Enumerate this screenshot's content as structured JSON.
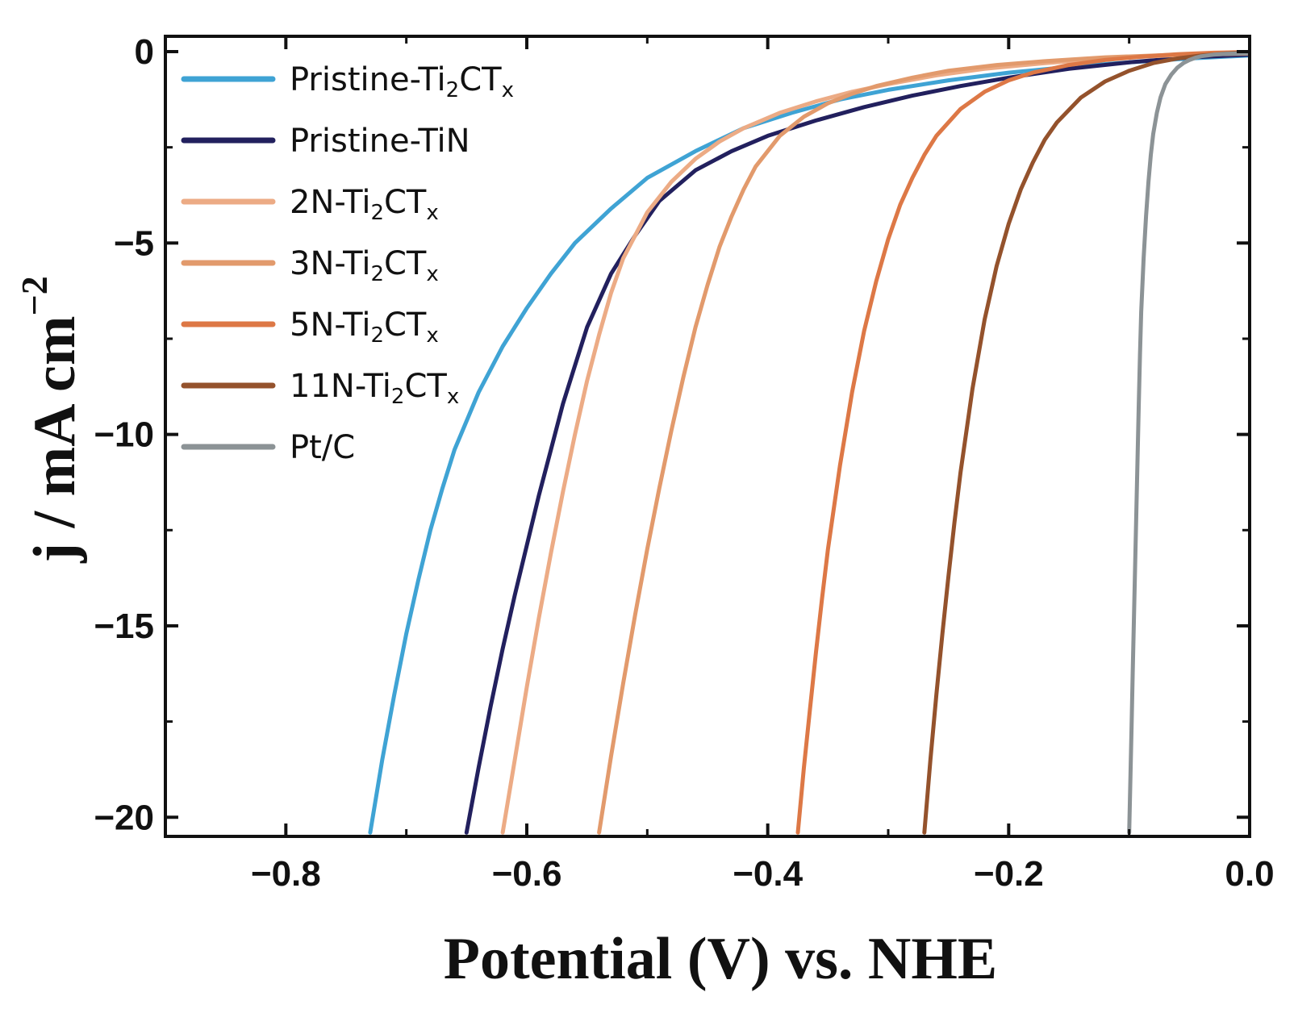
{
  "chart_data": {
    "type": "line",
    "title": "",
    "xlabel": "Potential (V) vs. NHE",
    "ylabel": "j / mA cm",
    "ylabel_superscript": "−2",
    "xlim": [
      -0.9,
      0.0
    ],
    "ylim": [
      -20.5,
      0.4
    ],
    "xticks": [
      -0.8,
      -0.6,
      -0.4,
      -0.2,
      0.0
    ],
    "xtick_labels": [
      "−0.8",
      "−0.6",
      "−0.4",
      "−0.2",
      "0.0"
    ],
    "yticks": [
      0,
      -5,
      -10,
      -15,
      -20
    ],
    "ytick_labels": [
      "0",
      "−5",
      "−10",
      "−15",
      "−20"
    ],
    "legend_position": "top-left",
    "grid": false,
    "series": [
      {
        "name": "Pristine-Ti",
        "sub": "2",
        "mid": "CT",
        "sub2": "x",
        "color": "#3fa3d4",
        "x": [
          -0.73,
          -0.72,
          -0.71,
          -0.7,
          -0.69,
          -0.68,
          -0.67,
          -0.66,
          -0.64,
          -0.62,
          -0.6,
          -0.58,
          -0.56,
          -0.53,
          -0.5,
          -0.46,
          -0.42,
          -0.38,
          -0.34,
          -0.3,
          -0.25,
          -0.2,
          -0.15,
          -0.1,
          -0.05,
          0.0
        ],
        "y": [
          -20.4,
          -18.5,
          -16.8,
          -15.2,
          -13.8,
          -12.5,
          -11.4,
          -10.4,
          -8.9,
          -7.7,
          -6.7,
          -5.8,
          -5.0,
          -4.1,
          -3.3,
          -2.6,
          -2.0,
          -1.6,
          -1.25,
          -1.0,
          -0.75,
          -0.55,
          -0.4,
          -0.28,
          -0.18,
          -0.1
        ]
      },
      {
        "name": "Pristine-TiN",
        "sub": "",
        "mid": "",
        "sub2": "",
        "color": "#22205e",
        "x": [
          -0.65,
          -0.64,
          -0.63,
          -0.62,
          -0.61,
          -0.6,
          -0.59,
          -0.58,
          -0.57,
          -0.56,
          -0.55,
          -0.53,
          -0.51,
          -0.49,
          -0.46,
          -0.43,
          -0.4,
          -0.36,
          -0.32,
          -0.28,
          -0.24,
          -0.2,
          -0.15,
          -0.1,
          -0.05,
          0.0
        ],
        "y": [
          -20.4,
          -18.7,
          -17.1,
          -15.6,
          -14.2,
          -12.9,
          -11.6,
          -10.4,
          -9.2,
          -8.2,
          -7.2,
          -5.8,
          -4.8,
          -3.9,
          -3.1,
          -2.6,
          -2.2,
          -1.8,
          -1.45,
          -1.15,
          -0.9,
          -0.68,
          -0.45,
          -0.28,
          -0.15,
          -0.08
        ]
      },
      {
        "name": "2N-Ti",
        "sub": "2",
        "mid": "CT",
        "sub2": "x",
        "color": "#ecab85",
        "x": [
          -0.62,
          -0.61,
          -0.6,
          -0.59,
          -0.58,
          -0.57,
          -0.56,
          -0.55,
          -0.54,
          -0.53,
          -0.52,
          -0.5,
          -0.48,
          -0.46,
          -0.44,
          -0.42,
          -0.39,
          -0.36,
          -0.33,
          -0.3,
          -0.26,
          -0.22,
          -0.17,
          -0.12,
          -0.06,
          0.0
        ],
        "y": [
          -20.4,
          -18.5,
          -16.6,
          -14.8,
          -13.1,
          -11.5,
          -10.0,
          -8.6,
          -7.4,
          -6.3,
          -5.4,
          -4.2,
          -3.4,
          -2.8,
          -2.35,
          -2.0,
          -1.6,
          -1.3,
          -1.05,
          -0.85,
          -0.62,
          -0.45,
          -0.3,
          -0.18,
          -0.09,
          -0.05
        ]
      },
      {
        "name": "3N-Ti",
        "sub": "2",
        "mid": "CT",
        "sub2": "x",
        "color": "#e29a6c",
        "x": [
          -0.54,
          -0.53,
          -0.52,
          -0.51,
          -0.5,
          -0.49,
          -0.48,
          -0.47,
          -0.46,
          -0.45,
          -0.44,
          -0.43,
          -0.42,
          -0.41,
          -0.39,
          -0.37,
          -0.35,
          -0.33,
          -0.31,
          -0.28,
          -0.25,
          -0.21,
          -0.17,
          -0.12,
          -0.06,
          0.0
        ],
        "y": [
          -20.4,
          -18.4,
          -16.5,
          -14.7,
          -13.0,
          -11.4,
          -9.9,
          -8.5,
          -7.2,
          -6.1,
          -5.1,
          -4.3,
          -3.6,
          -3.0,
          -2.2,
          -1.7,
          -1.35,
          -1.1,
          -0.9,
          -0.68,
          -0.5,
          -0.35,
          -0.25,
          -0.15,
          -0.08,
          -0.04
        ]
      },
      {
        "name": "5N-Ti",
        "sub": "2",
        "mid": "CT",
        "sub2": "x",
        "color": "#dd7846",
        "x": [
          -0.375,
          -0.37,
          -0.365,
          -0.36,
          -0.355,
          -0.35,
          -0.34,
          -0.33,
          -0.32,
          -0.31,
          -0.3,
          -0.29,
          -0.28,
          -0.27,
          -0.26,
          -0.24,
          -0.22,
          -0.2,
          -0.18,
          -0.15,
          -0.12,
          -0.09,
          -0.06,
          -0.03,
          0.0
        ],
        "y": [
          -20.4,
          -18.7,
          -17.2,
          -15.7,
          -14.3,
          -13.0,
          -10.8,
          -8.9,
          -7.3,
          -6.0,
          -4.9,
          -4.0,
          -3.3,
          -2.7,
          -2.2,
          -1.5,
          -1.05,
          -0.75,
          -0.55,
          -0.35,
          -0.22,
          -0.13,
          -0.07,
          -0.03,
          -0.01
        ]
      },
      {
        "name": "11N-Ti",
        "sub": "2",
        "mid": "CT",
        "sub2": "x",
        "color": "#94522c",
        "x": [
          -0.27,
          -0.265,
          -0.26,
          -0.255,
          -0.25,
          -0.245,
          -0.24,
          -0.23,
          -0.22,
          -0.21,
          -0.2,
          -0.19,
          -0.18,
          -0.17,
          -0.16,
          -0.14,
          -0.12,
          -0.1,
          -0.08,
          -0.06,
          -0.04,
          -0.02,
          0.0
        ],
        "y": [
          -20.4,
          -18.5,
          -16.8,
          -15.2,
          -13.7,
          -12.3,
          -11.0,
          -8.8,
          -7.0,
          -5.6,
          -4.5,
          -3.6,
          -2.9,
          -2.3,
          -1.85,
          -1.2,
          -0.78,
          -0.5,
          -0.3,
          -0.18,
          -0.1,
          -0.05,
          -0.02
        ]
      },
      {
        "name": "Pt/C",
        "sub": "",
        "mid": "",
        "sub2": "",
        "color": "#8c9396",
        "x": [
          -0.1,
          -0.099,
          -0.098,
          -0.097,
          -0.096,
          -0.095,
          -0.094,
          -0.093,
          -0.092,
          -0.091,
          -0.09,
          -0.088,
          -0.086,
          -0.084,
          -0.082,
          -0.08,
          -0.077,
          -0.074,
          -0.07,
          -0.065,
          -0.06,
          -0.055,
          -0.05,
          -0.045,
          -0.04,
          -0.03,
          -0.02,
          0.0
        ],
        "y": [
          -20.4,
          -19.0,
          -17.6,
          -16.2,
          -14.8,
          -13.4,
          -12.0,
          -10.6,
          -9.2,
          -7.9,
          -6.8,
          -5.4,
          -4.3,
          -3.4,
          -2.7,
          -2.15,
          -1.6,
          -1.2,
          -0.85,
          -0.6,
          -0.42,
          -0.3,
          -0.22,
          -0.16,
          -0.12,
          -0.08,
          -0.06,
          -0.04
        ]
      }
    ]
  }
}
